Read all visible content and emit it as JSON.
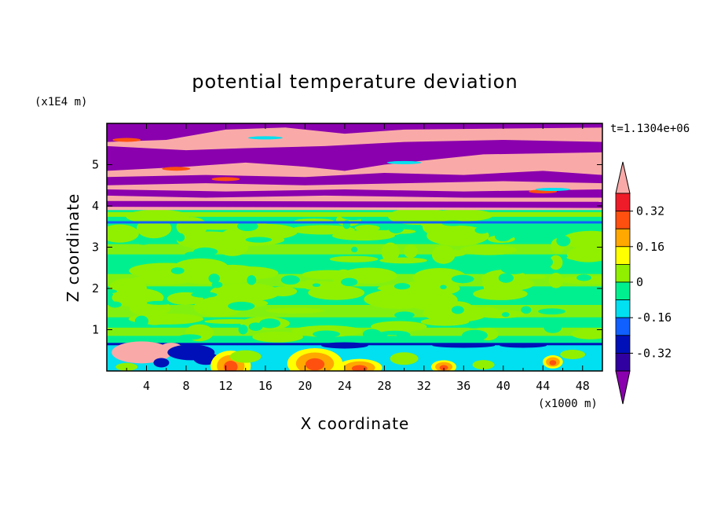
{
  "chart_data": {
    "type": "heatmap",
    "title": "potential temperature deviation",
    "xlabel": "X coordinate",
    "ylabel": "Z coordinate",
    "x_unit": "(x1000 m)",
    "y_unit": "(x1E4 m)",
    "time_label": "t=1.1304e+06",
    "xlim": [
      0,
      50
    ],
    "ylim": [
      0,
      6
    ],
    "x_ticks": [
      "4",
      "8",
      "12",
      "16",
      "20",
      "24",
      "28",
      "32",
      "36",
      "40",
      "44",
      "48"
    ],
    "y_ticks": [
      "1",
      "2",
      "3",
      "4",
      "5"
    ],
    "colorbar": {
      "levels": [
        -0.4,
        -0.32,
        -0.24,
        -0.16,
        -0.08,
        0,
        0.08,
        0.16,
        0.24,
        0.32,
        0.4
      ],
      "labels": [
        "0.32",
        "0.16",
        "0",
        "-0.16",
        "-0.32"
      ],
      "colors": [
        "#8a00ae",
        "#3000a0",
        "#0010b8",
        "#1060ff",
        "#00e0f0",
        "#00f090",
        "#90f000",
        "#ffff00",
        "#ffa800",
        "#ff5010",
        "#ee1c28",
        "#f9aaa8"
      ]
    },
    "layers": [
      {
        "z_range": [
          5.6,
          6.0
        ],
        "description_value": "upper band alternating >0.4 and <-0.4"
      },
      {
        "z_range": [
          4.0,
          5.6
        ],
        "description_value": "alternating bands >0.4 and <-0.4"
      },
      {
        "z_range": [
          0.7,
          4.0
        ],
        "description_value": "mostly -0.08 to 0.08"
      },
      {
        "z_range": [
          0.0,
          0.7
        ],
        "description_value": "mixed -0.4 to 0.4"
      }
    ]
  }
}
